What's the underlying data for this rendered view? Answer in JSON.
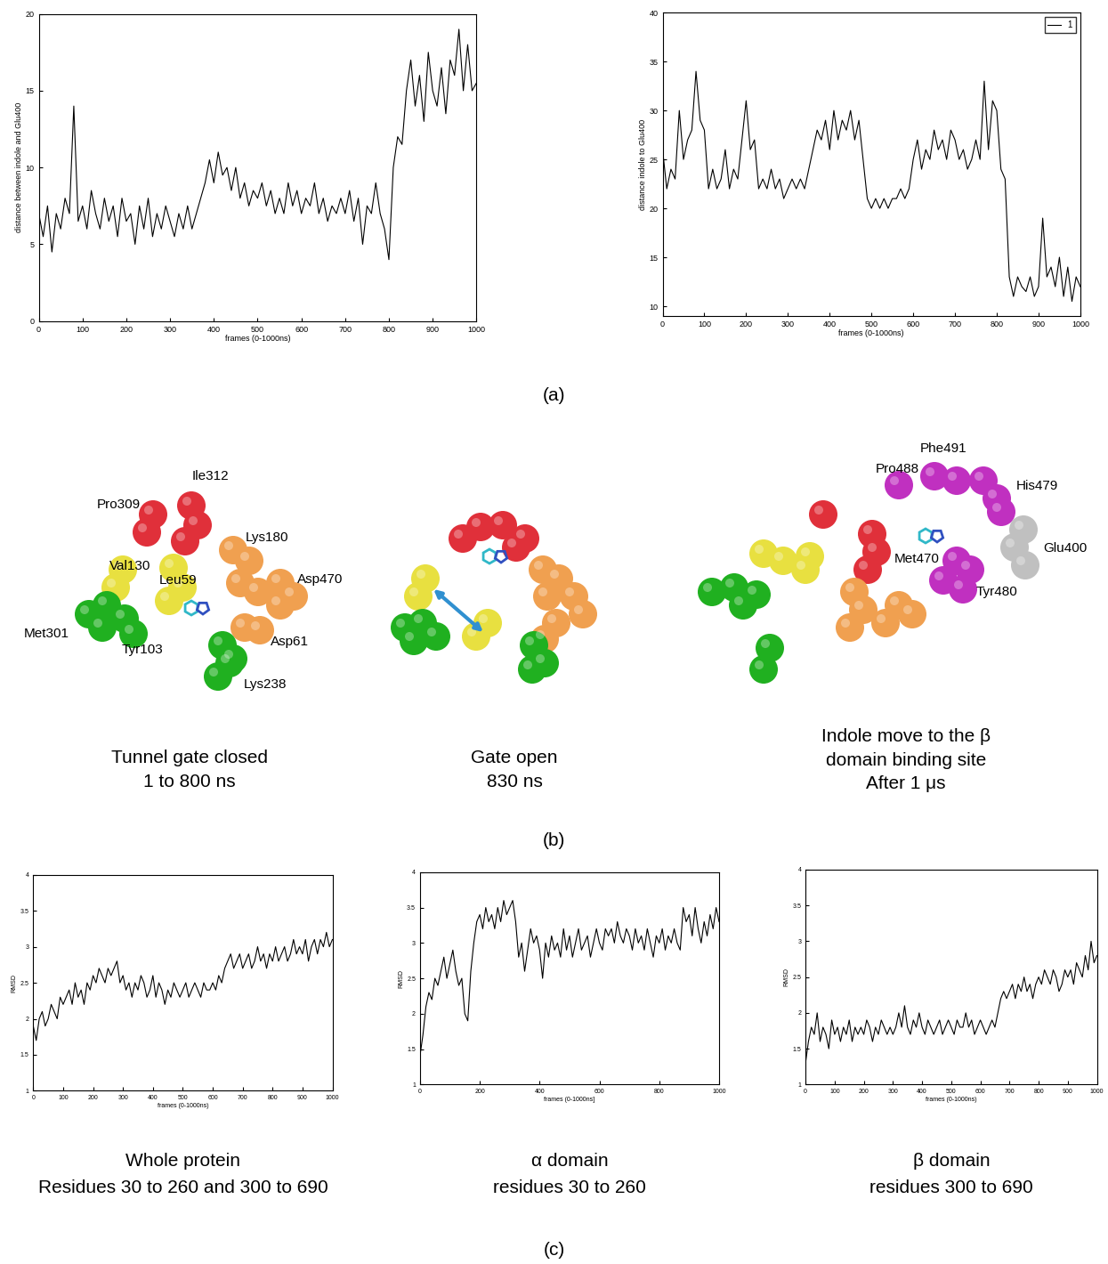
{
  "panel_labels": [
    "(a)",
    "(b)",
    "(c)"
  ],
  "chart_data": [
    {
      "type": "line",
      "xlabel": "frames (0-1000ns)",
      "ylabel": "distance between indole and Glu400",
      "xlim": [
        0,
        1000
      ],
      "ylim": [
        0,
        20
      ],
      "xticks": [
        0,
        100,
        200,
        300,
        400,
        500,
        600,
        700,
        800,
        900,
        1000
      ],
      "yticks": [
        0,
        5,
        10,
        15,
        20
      ],
      "x": [
        0,
        10,
        20,
        30,
        40,
        50,
        60,
        70,
        80,
        90,
        100,
        110,
        120,
        130,
        140,
        150,
        160,
        170,
        180,
        190,
        200,
        210,
        220,
        230,
        240,
        250,
        260,
        270,
        280,
        290,
        300,
        310,
        320,
        330,
        340,
        350,
        360,
        370,
        380,
        390,
        400,
        410,
        420,
        430,
        440,
        450,
        460,
        470,
        480,
        490,
        500,
        510,
        520,
        530,
        540,
        550,
        560,
        570,
        580,
        590,
        600,
        610,
        620,
        630,
        640,
        650,
        660,
        670,
        680,
        690,
        700,
        710,
        720,
        730,
        740,
        750,
        760,
        770,
        780,
        790,
        800,
        810,
        820,
        830,
        840,
        850,
        860,
        870,
        880,
        890,
        900,
        910,
        920,
        930,
        940,
        950,
        960,
        970,
        980,
        990,
        1000
      ],
      "series": [
        {
          "color": "#000000",
          "values": [
            7,
            5.5,
            7.5,
            4.5,
            7,
            6,
            8,
            7,
            14,
            6.5,
            7.5,
            6,
            8.5,
            7,
            6,
            8,
            6.5,
            7.5,
            5.5,
            8,
            6.5,
            7,
            5,
            7.5,
            6,
            8,
            5.5,
            7,
            6,
            7.5,
            6.5,
            5.5,
            7,
            6,
            7.5,
            6,
            7,
            8,
            9,
            10.5,
            9,
            11,
            9.5,
            10,
            8.5,
            10,
            8,
            9,
            7.5,
            8.5,
            8,
            9,
            7.5,
            8.5,
            7,
            8,
            7,
            9,
            7.5,
            8.5,
            7,
            8,
            7.5,
            9,
            7,
            8,
            6.5,
            7.5,
            7,
            8,
            7,
            8.5,
            6.5,
            8,
            5,
            7.5,
            7,
            9,
            7,
            6,
            4,
            10,
            12,
            11.5,
            15,
            17,
            14,
            16,
            13,
            17.5,
            15,
            14,
            16.5,
            13.5,
            17,
            16,
            19,
            15,
            18,
            15,
            15.5
          ]
        }
      ]
    },
    {
      "type": "line",
      "xlabel": "frames (0-1000ns)",
      "ylabel": "distance indole to Glu400",
      "xlim": [
        0,
        1000
      ],
      "ylim": [
        9,
        40
      ],
      "xticks": [
        0,
        100,
        200,
        300,
        400,
        500,
        600,
        700,
        800,
        900,
        1000
      ],
      "yticks": [
        10,
        15,
        20,
        25,
        30,
        35,
        40
      ],
      "legend": "upper right",
      "x": [
        0,
        10,
        20,
        30,
        40,
        50,
        60,
        70,
        80,
        90,
        100,
        110,
        120,
        130,
        140,
        150,
        160,
        170,
        180,
        190,
        200,
        210,
        220,
        230,
        240,
        250,
        260,
        270,
        280,
        290,
        300,
        310,
        320,
        330,
        340,
        350,
        360,
        370,
        380,
        390,
        400,
        410,
        420,
        430,
        440,
        450,
        460,
        470,
        480,
        490,
        500,
        510,
        520,
        530,
        540,
        550,
        560,
        570,
        580,
        590,
        600,
        610,
        620,
        630,
        640,
        650,
        660,
        670,
        680,
        690,
        700,
        710,
        720,
        730,
        740,
        750,
        760,
        770,
        780,
        790,
        800,
        810,
        820,
        830,
        840,
        850,
        860,
        870,
        880,
        890,
        900,
        910,
        920,
        930,
        940,
        950,
        960,
        970,
        980,
        990,
        1000
      ],
      "series": [
        {
          "name": "1",
          "color": "#000000",
          "values": [
            26,
            22,
            24,
            23,
            30,
            25,
            27,
            28,
            34,
            29,
            28,
            22,
            24,
            22,
            23,
            26,
            22,
            24,
            23,
            27,
            31,
            26,
            27,
            22,
            23,
            22,
            24,
            22,
            23,
            21,
            22,
            23,
            22,
            23,
            22,
            24,
            26,
            28,
            27,
            29,
            26,
            30,
            27,
            29,
            28,
            30,
            27,
            29,
            25,
            21,
            20,
            21,
            20,
            21,
            20,
            21,
            21,
            22,
            21,
            22,
            25,
            27,
            24,
            26,
            25,
            28,
            26,
            27,
            25,
            28,
            27,
            25,
            26,
            24,
            25,
            27,
            25,
            33,
            26,
            31,
            30,
            24,
            23,
            13,
            11,
            13,
            12,
            11.5,
            13,
            11,
            12,
            19,
            13,
            14,
            12,
            15,
            11,
            14,
            10.5,
            13,
            12
          ]
        }
      ]
    },
    {
      "type": "line",
      "title": "Whole protein",
      "subtitle": "Residues 30 to 260 and 300 to 690",
      "xlabel": "frames (0-1000ns)",
      "ylabel": "RMSD",
      "xlim": [
        0,
        1000
      ],
      "ylim": [
        1,
        4
      ],
      "xticks": [
        0,
        100,
        200,
        300,
        400,
        500,
        600,
        700,
        800,
        900,
        1000
      ],
      "yticks": [
        1,
        1.5,
        2,
        2.5,
        3,
        3.5,
        4
      ],
      "x": [
        0,
        10,
        20,
        30,
        40,
        50,
        60,
        70,
        80,
        90,
        100,
        110,
        120,
        130,
        140,
        150,
        160,
        170,
        180,
        190,
        200,
        210,
        220,
        230,
        240,
        250,
        260,
        270,
        280,
        290,
        300,
        310,
        320,
        330,
        340,
        350,
        360,
        370,
        380,
        390,
        400,
        410,
        420,
        430,
        440,
        450,
        460,
        470,
        480,
        490,
        500,
        510,
        520,
        530,
        540,
        550,
        560,
        570,
        580,
        590,
        600,
        610,
        620,
        630,
        640,
        650,
        660,
        670,
        680,
        690,
        700,
        710,
        720,
        730,
        740,
        750,
        760,
        770,
        780,
        790,
        800,
        810,
        820,
        830,
        840,
        850,
        860,
        870,
        880,
        890,
        900,
        910,
        920,
        930,
        940,
        950,
        960,
        970,
        980,
        990,
        1000
      ],
      "series": [
        {
          "color": "#000000",
          "values": [
            1.9,
            1.7,
            2.0,
            2.1,
            1.9,
            2.0,
            2.2,
            2.1,
            2.0,
            2.3,
            2.2,
            2.3,
            2.4,
            2.2,
            2.5,
            2.3,
            2.4,
            2.2,
            2.5,
            2.4,
            2.6,
            2.5,
            2.7,
            2.6,
            2.5,
            2.7,
            2.6,
            2.7,
            2.8,
            2.5,
            2.6,
            2.4,
            2.5,
            2.3,
            2.5,
            2.4,
            2.6,
            2.5,
            2.3,
            2.4,
            2.6,
            2.3,
            2.5,
            2.4,
            2.2,
            2.4,
            2.3,
            2.5,
            2.4,
            2.3,
            2.4,
            2.5,
            2.3,
            2.4,
            2.5,
            2.4,
            2.3,
            2.5,
            2.4,
            2.4,
            2.5,
            2.4,
            2.6,
            2.5,
            2.7,
            2.8,
            2.9,
            2.7,
            2.8,
            2.9,
            2.7,
            2.8,
            2.9,
            2.7,
            2.8,
            3.0,
            2.8,
            2.9,
            2.7,
            2.9,
            2.8,
            3.0,
            2.8,
            2.9,
            3.0,
            2.8,
            2.9,
            3.1,
            2.9,
            3.0,
            2.9,
            3.1,
            2.8,
            3.0,
            3.1,
            2.9,
            3.1,
            3.0,
            3.2,
            3.0,
            3.1
          ]
        }
      ]
    },
    {
      "type": "line",
      "title": "α domain",
      "subtitle": "residues 30 to 260",
      "xlabel": "frames (0-1000ns]",
      "ylabel": "RMSD",
      "xlim": [
        0,
        1000
      ],
      "ylim": [
        1,
        4
      ],
      "xticks": [
        0,
        200,
        400,
        600,
        800,
        1000
      ],
      "yticks": [
        1,
        1.5,
        2,
        2.5,
        3,
        3.5,
        4
      ],
      "x": [
        0,
        10,
        20,
        30,
        40,
        50,
        60,
        70,
        80,
        90,
        100,
        110,
        120,
        130,
        140,
        150,
        160,
        170,
        180,
        190,
        200,
        210,
        220,
        230,
        240,
        250,
        260,
        270,
        280,
        290,
        300,
        310,
        320,
        330,
        340,
        350,
        360,
        370,
        380,
        390,
        400,
        410,
        420,
        430,
        440,
        450,
        460,
        470,
        480,
        490,
        500,
        510,
        520,
        530,
        540,
        550,
        560,
        570,
        580,
        590,
        600,
        610,
        620,
        630,
        640,
        650,
        660,
        670,
        680,
        690,
        700,
        710,
        720,
        730,
        740,
        750,
        760,
        770,
        780,
        790,
        800,
        810,
        820,
        830,
        840,
        850,
        860,
        870,
        880,
        890,
        900,
        910,
        920,
        930,
        940,
        950,
        960,
        970,
        980,
        990,
        1000
      ],
      "series": [
        {
          "color": "#000000",
          "values": [
            1.4,
            1.7,
            2.1,
            2.3,
            2.2,
            2.5,
            2.4,
            2.6,
            2.8,
            2.5,
            2.7,
            2.9,
            2.6,
            2.4,
            2.5,
            2.0,
            1.9,
            2.6,
            3.0,
            3.3,
            3.4,
            3.2,
            3.5,
            3.3,
            3.4,
            3.2,
            3.5,
            3.3,
            3.6,
            3.4,
            3.5,
            3.6,
            3.3,
            2.8,
            3.0,
            2.6,
            2.9,
            3.2,
            3.0,
            3.1,
            2.9,
            2.5,
            3.0,
            2.8,
            3.1,
            2.9,
            3.0,
            2.8,
            3.2,
            2.9,
            3.1,
            2.8,
            3.0,
            3.2,
            2.9,
            3.0,
            3.1,
            2.8,
            3.0,
            3.2,
            3.0,
            2.9,
            3.2,
            3.1,
            3.2,
            3.0,
            3.3,
            3.1,
            3.0,
            3.2,
            3.1,
            2.9,
            3.2,
            3.0,
            3.1,
            2.9,
            3.2,
            3.0,
            2.8,
            3.1,
            3.0,
            3.2,
            2.9,
            3.1,
            3.0,
            3.2,
            3.0,
            2.9,
            3.5,
            3.3,
            3.4,
            3.1,
            3.5,
            3.2,
            3.0,
            3.3,
            3.1,
            3.4,
            3.2,
            3.5,
            3.3
          ]
        }
      ]
    },
    {
      "type": "line",
      "title": "β domain",
      "subtitle": "residues 300 to 690",
      "xlabel": "frames (0-1000ns)",
      "ylabel": "RMSD",
      "xlim": [
        0,
        1000
      ],
      "ylim": [
        1,
        4
      ],
      "xticks": [
        0,
        100,
        200,
        300,
        400,
        500,
        600,
        700,
        800,
        900,
        1000
      ],
      "yticks": [
        1,
        1.5,
        2,
        2.5,
        3,
        3.5,
        4
      ],
      "x": [
        0,
        10,
        20,
        30,
        40,
        50,
        60,
        70,
        80,
        90,
        100,
        110,
        120,
        130,
        140,
        150,
        160,
        170,
        180,
        190,
        200,
        210,
        220,
        230,
        240,
        250,
        260,
        270,
        280,
        290,
        300,
        310,
        320,
        330,
        340,
        350,
        360,
        370,
        380,
        390,
        400,
        410,
        420,
        430,
        440,
        450,
        460,
        470,
        480,
        490,
        500,
        510,
        520,
        530,
        540,
        550,
        560,
        570,
        580,
        590,
        600,
        610,
        620,
        630,
        640,
        650,
        660,
        670,
        680,
        690,
        700,
        710,
        720,
        730,
        740,
        750,
        760,
        770,
        780,
        790,
        800,
        810,
        820,
        830,
        840,
        850,
        860,
        870,
        880,
        890,
        900,
        910,
        920,
        930,
        940,
        950,
        960,
        970,
        980,
        990,
        1000
      ],
      "series": [
        {
          "color": "#000000",
          "values": [
            1.3,
            1.6,
            1.8,
            1.7,
            2.0,
            1.6,
            1.8,
            1.7,
            1.5,
            1.9,
            1.7,
            1.8,
            1.6,
            1.8,
            1.7,
            1.9,
            1.6,
            1.8,
            1.7,
            1.8,
            1.7,
            1.9,
            1.8,
            1.6,
            1.8,
            1.7,
            1.9,
            1.8,
            1.7,
            1.8,
            1.7,
            1.8,
            2.0,
            1.8,
            2.1,
            1.8,
            1.7,
            1.9,
            1.8,
            2.0,
            1.8,
            1.7,
            1.9,
            1.8,
            1.7,
            1.8,
            1.9,
            1.7,
            1.8,
            1.9,
            1.8,
            1.7,
            1.9,
            1.8,
            1.8,
            2.0,
            1.8,
            1.9,
            1.7,
            1.8,
            1.9,
            1.8,
            1.7,
            1.8,
            1.9,
            1.8,
            2.0,
            2.2,
            2.3,
            2.2,
            2.3,
            2.4,
            2.2,
            2.4,
            2.3,
            2.5,
            2.3,
            2.4,
            2.2,
            2.4,
            2.5,
            2.4,
            2.6,
            2.5,
            2.4,
            2.6,
            2.5,
            2.3,
            2.4,
            2.6,
            2.5,
            2.6,
            2.4,
            2.7,
            2.6,
            2.5,
            2.8,
            2.6,
            3.0,
            2.7,
            2.8
          ]
        }
      ]
    }
  ],
  "diagram": {
    "scenes": [
      {
        "caption": "Tunnel gate closed\n1 to 800 ns",
        "labels": [
          "Ile312",
          "Pro309",
          "Lys180",
          "Val130",
          "Leu59",
          "Asp470",
          "Met301",
          "Tyr103",
          "Asp61",
          "Lys238"
        ]
      },
      {
        "caption": "Gate open\n830 ns"
      },
      {
        "caption": "Indole move to the β\ndomain binding site\nAfter 1 μs",
        "labels": [
          "Phe491",
          "Pro488",
          "His479",
          "Glu400",
          "Met470",
          "Tyr480"
        ]
      }
    ]
  }
}
